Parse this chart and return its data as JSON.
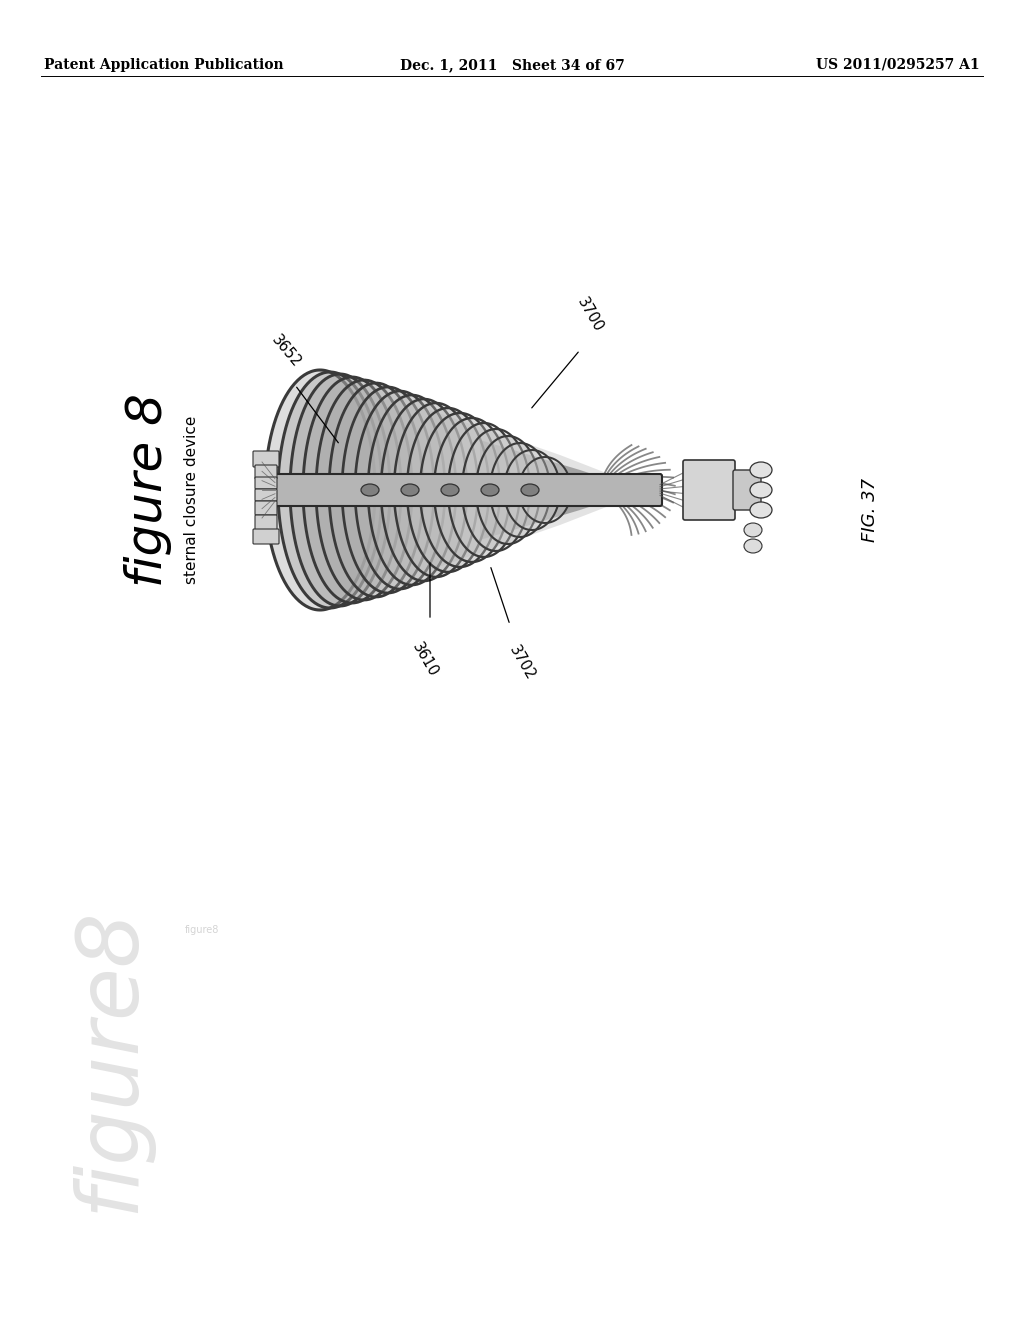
{
  "background_color": "#ffffff",
  "fig_width": 10.24,
  "fig_height": 13.2,
  "dpi": 100,
  "header_left": "Patent Application Publication",
  "header_center": "Dec. 1, 2011   Sheet 34 of 67",
  "header_right": "US 2011/0295257 A1",
  "header_fontsize": 10.0,
  "figure_label": "figure 8",
  "figure_label_fontsize": 36,
  "subtitle_label": "sternal closure device",
  "subtitle_fontsize": 11,
  "fig37_label": "FIG. 37",
  "fig37_fontsize": 13,
  "watermark_label": "figure8",
  "watermark_fontsize": 62,
  "label_3700": "3700",
  "label_3652": "3652",
  "label_3610": "3610",
  "label_3702": "3702",
  "annotation_fontsize": 10.5
}
